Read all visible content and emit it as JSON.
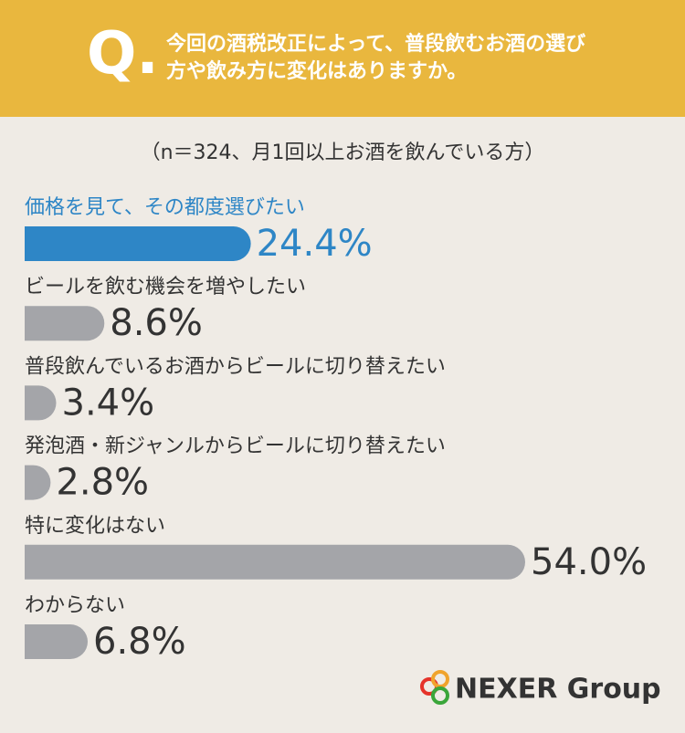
{
  "header": {
    "mark": "Q.",
    "title": "今回の酒税改正によって、普段飲むお酒の選び方や飲み方に変化はありますか。"
  },
  "chart_data": {
    "type": "bar",
    "orientation": "horizontal",
    "subtitle": "（n＝324、月1回以上お酒を飲んでいる方）",
    "categories": [
      "価格を見て、その都度選びたい",
      "ビールを飲む機会を増やしたい",
      "普段飲んでいるお酒からビールに切り替えたい",
      "発泡酒・新ジャンルからビールに切り替えたい",
      "特に変化はない",
      "わからない"
    ],
    "values": [
      24.4,
      8.6,
      3.4,
      2.8,
      54.0,
      6.8
    ],
    "value_labels": [
      "24.4%",
      "8.6%",
      "3.4%",
      "2.8%",
      "54.0%",
      "6.8%"
    ],
    "colors": [
      "#2e86c6",
      "#a4a5a9",
      "#a4a5a9",
      "#a4a5a9",
      "#a4a5a9",
      "#a4a5a9"
    ]
  },
  "footer": {
    "logo": "NEXER Group"
  }
}
